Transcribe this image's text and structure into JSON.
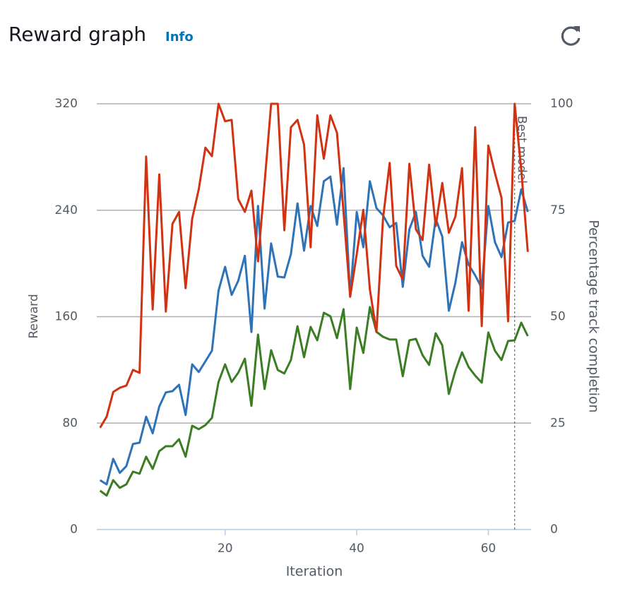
{
  "header": {
    "title": "Reward graph",
    "info": "Info"
  },
  "chart_data": {
    "type": "line",
    "xlabel": "Iteration",
    "ylabel": "Reward",
    "y2label": "Percentage track completion",
    "x": [
      1,
      2,
      3,
      4,
      5,
      6,
      7,
      8,
      9,
      10,
      11,
      12,
      13,
      14,
      15,
      16,
      17,
      18,
      19,
      20,
      21,
      22,
      23,
      24,
      25,
      26,
      27,
      28,
      29,
      30,
      31,
      32,
      33,
      34,
      35,
      36,
      37,
      38,
      39,
      40,
      41,
      42,
      43,
      44,
      45,
      46,
      47,
      48,
      49,
      50,
      51,
      52,
      53,
      54,
      55,
      56,
      57,
      58,
      59,
      60,
      61,
      62,
      63,
      64,
      65,
      66
    ],
    "xlim": [
      0.5,
      66.5
    ],
    "xticks": [
      20,
      40,
      60
    ],
    "ylim": [
      0,
      320
    ],
    "yticks": [
      0,
      80,
      160,
      240,
      320
    ],
    "y2lim": [
      0,
      100
    ],
    "y2ticks": [
      0,
      25,
      50,
      75,
      100
    ],
    "grid": true,
    "series": [
      {
        "color": "#3b7d23",
        "values": [
          29.2,
          25.5,
          37.1,
          31.3,
          34.0,
          43.5,
          41.9,
          54.7,
          45.6,
          58.9,
          62.6,
          62.6,
          67.9,
          54.7,
          78.0,
          75.4,
          78.5,
          83.9,
          110.9,
          124.2,
          110.9,
          117.8,
          128.4,
          92.9,
          146.5,
          105.6,
          134.8,
          119.9,
          117.3,
          127.4,
          152.8,
          129.5,
          152.3,
          142.2,
          162.9,
          160.3,
          143.8,
          165.6,
          105.6,
          151.8,
          132.7,
          167.2,
          148.6,
          144.9,
          142.8,
          142.8,
          115.2,
          142.2,
          143.3,
          131.1,
          123.7,
          147.5,
          138.5,
          101.9,
          119.4,
          133.2,
          122.1,
          115.7,
          110.4,
          148.1,
          134.3,
          127.4,
          141.7,
          142.2,
          155.5,
          145.4
        ]
      },
      {
        "color": "#2e73b8",
        "axis": "y2",
        "values": [
          11.6,
          10.6,
          16.6,
          13.3,
          14.9,
          20.1,
          20.4,
          26.5,
          22.6,
          28.9,
          32.2,
          32.5,
          34.0,
          26.9,
          38.8,
          37.0,
          39.5,
          42.0,
          56.1,
          61.7,
          55.1,
          58.4,
          64.3,
          46.4,
          76.0,
          51.9,
          67.2,
          59.4,
          59.2,
          64.7,
          76.6,
          65.5,
          76.0,
          71.3,
          81.8,
          82.9,
          71.6,
          84.9,
          54.7,
          74.6,
          66.3,
          81.8,
          75.5,
          73.8,
          71.0,
          72.0,
          57.0,
          70.5,
          74.6,
          64.3,
          61.7,
          73.0,
          68.8,
          51.4,
          58.0,
          67.5,
          62.2,
          59.7,
          56.7,
          76.0,
          67.5,
          64.0,
          72.1,
          72.5,
          79.9,
          74.6
        ]
      },
      {
        "color": "#d13212",
        "axis": "y2",
        "values": [
          23.9,
          26.5,
          32.3,
          33.3,
          33.8,
          37.5,
          36.8,
          87.6,
          51.7,
          83.4,
          51.2,
          71.8,
          74.6,
          56.7,
          73.0,
          79.9,
          89.7,
          87.7,
          100,
          95.9,
          96.2,
          77.6,
          74.6,
          79.6,
          63.0,
          81.3,
          100,
          100,
          70.3,
          94.5,
          96.2,
          90.4,
          66.3,
          97.3,
          87.1,
          97.3,
          93.2,
          74.6,
          54.7,
          64.7,
          75.1,
          56.4,
          46.4,
          73.0,
          86.1,
          61.9,
          58.7,
          85.9,
          70.5,
          68.0,
          85.7,
          71.3,
          81.4,
          69.7,
          73.5,
          84.9,
          51.4,
          94.5,
          47.8,
          90.2,
          83.7,
          77.9,
          48.9,
          100,
          84.6,
          65.2
        ]
      }
    ],
    "annotations": [
      {
        "text": "Best model",
        "x": 64
      }
    ]
  }
}
